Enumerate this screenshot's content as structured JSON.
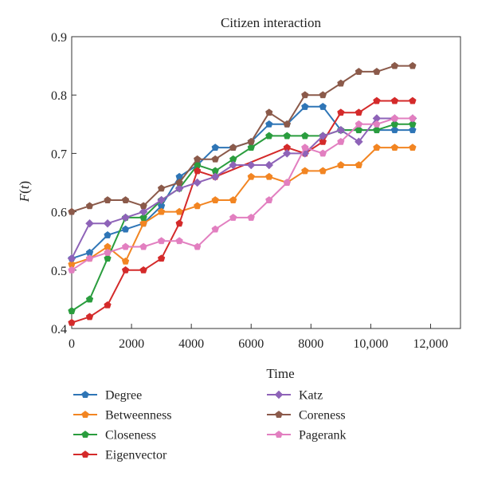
{
  "chart_data": {
    "type": "line",
    "title": "Citizen interaction",
    "xlabel": "Time",
    "ylabel": "F(t)",
    "xlim": [
      0,
      13000
    ],
    "ylim": [
      0.4,
      0.9
    ],
    "xticks": [
      0,
      2000,
      4000,
      6000,
      8000,
      10000,
      12000
    ],
    "xtick_labels": [
      "0",
      "2000",
      "4000",
      "6000",
      "8000",
      "10,000",
      "12,000"
    ],
    "yticks": [
      0.4,
      0.5,
      0.6,
      0.7,
      0.8,
      0.9
    ],
    "ytick_labels": [
      "0.4",
      "0.5",
      "0.6",
      "0.7",
      "0.8",
      "0.9"
    ],
    "grid": false,
    "legend_position": "bottom",
    "x": [
      0,
      600,
      1200,
      1800,
      2400,
      3000,
      3600,
      4200,
      4800,
      5400,
      6000,
      6600,
      7200,
      7800,
      8400,
      9000,
      9600,
      10200,
      10800,
      11400
    ],
    "series": [
      {
        "name": "Degree",
        "color": "#2e75b6",
        "marker": "pentagon",
        "values": [
          0.52,
          0.53,
          0.56,
          0.57,
          0.58,
          0.61,
          0.66,
          0.68,
          0.71,
          0.71,
          0.72,
          0.75,
          0.75,
          0.78,
          0.78,
          0.74,
          0.74,
          0.74,
          0.74,
          0.74
        ]
      },
      {
        "name": "Betweenness",
        "color": "#f28522",
        "marker": "pentagon",
        "values": [
          0.51,
          0.52,
          0.54,
          0.515,
          0.58,
          0.6,
          0.6,
          0.61,
          0.62,
          0.62,
          0.66,
          0.66,
          0.65,
          0.67,
          0.67,
          0.68,
          0.68,
          0.71,
          0.71,
          0.71
        ]
      },
      {
        "name": "Closeness",
        "color": "#2a9d3e",
        "marker": "pentagon",
        "values": [
          0.43,
          0.45,
          0.52,
          0.59,
          0.59,
          0.62,
          0.64,
          0.68,
          0.67,
          0.69,
          0.71,
          0.73,
          0.73,
          0.73,
          0.73,
          0.74,
          0.74,
          0.74,
          0.75,
          0.75
        ]
      },
      {
        "name": "Eigenvector",
        "color": "#d42a2a",
        "marker": "pentagon",
        "values": [
          0.41,
          0.42,
          0.44,
          0.5,
          0.5,
          0.52,
          0.58,
          0.67,
          0.66,
          null,
          null,
          null,
          0.71,
          0.7,
          0.72,
          0.77,
          0.77,
          0.79,
          0.79,
          0.79
        ]
      },
      {
        "name": "Katz",
        "color": "#8e63b8",
        "marker": "diamond",
        "values": [
          0.52,
          0.58,
          0.58,
          0.59,
          0.6,
          0.62,
          0.64,
          0.65,
          0.66,
          0.68,
          0.68,
          0.68,
          0.7,
          0.7,
          0.73,
          0.74,
          0.72,
          0.76,
          0.76,
          0.76
        ]
      },
      {
        "name": "Coreness",
        "color": "#8b5a4a",
        "marker": "pentagon",
        "values": [
          0.6,
          0.61,
          0.62,
          0.62,
          0.61,
          0.64,
          0.65,
          0.69,
          0.69,
          0.71,
          0.72,
          0.77,
          0.75,
          0.8,
          0.8,
          0.82,
          0.84,
          0.84,
          0.85,
          0.85
        ]
      },
      {
        "name": "Pagerank",
        "color": "#e27fc0",
        "marker": "pentagon",
        "values": [
          0.5,
          0.52,
          0.53,
          0.54,
          0.54,
          0.55,
          0.55,
          0.54,
          0.57,
          0.59,
          0.59,
          0.62,
          0.65,
          0.71,
          0.7,
          0.72,
          0.75,
          0.75,
          0.76,
          0.76
        ]
      }
    ],
    "legend_columns": [
      [
        "Degree",
        "Betweenness",
        "Closeness",
        "Eigenvector"
      ],
      [
        "Katz",
        "Coreness",
        "Pagerank"
      ]
    ]
  }
}
